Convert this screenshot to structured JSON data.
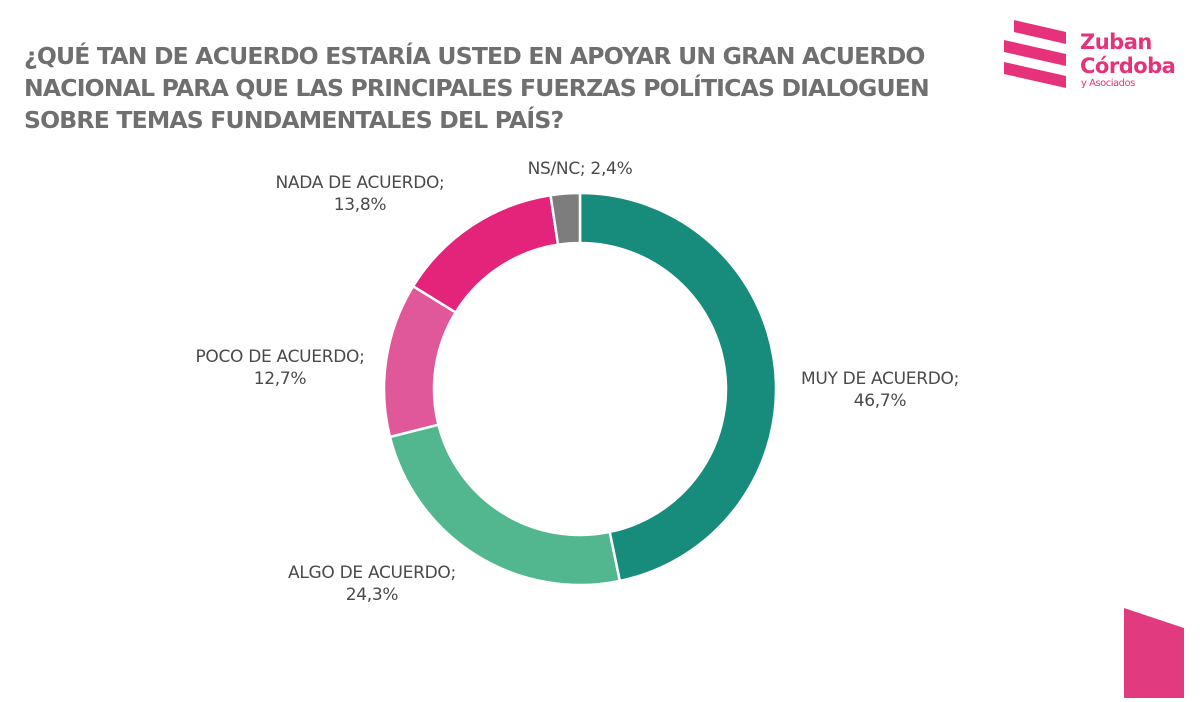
{
  "title": "¿Qué tan de acuerdo estaría usted en apoyar un gran acuerdo nacional para que las principales fuerzas políticas dialoguen sobre temas fundamentales del país?",
  "title_lines": [
    "¿QUÉ TAN DE ACUERDO ESTARÍA USTED EN APOYAR UN GRAN ACUERDO",
    "NACIONAL PARA QUE LAS PRINCIPALES FUERZAS POLÍTICAS DIALOGUEN",
    "SOBRE TEMAS FUNDAMENTALES DEL PAÍS?"
  ],
  "logo": {
    "line1": "Zuban",
    "line2": "Córdoba",
    "line3": "y Asociados",
    "color": "#e5327a"
  },
  "chart_data": {
    "type": "pie",
    "style": "donut",
    "start": "top",
    "direction": "clockwise",
    "unit": "%",
    "categories": [
      "MUY DE ACUERDO",
      "ALGO DE ACUERDO",
      "POCO DE ACUERDO",
      "NADA DE ACUERDO",
      "NS/NC"
    ],
    "values": [
      46.7,
      24.3,
      12.7,
      13.8,
      2.4
    ],
    "value_labels": [
      "46,7%",
      "24,3%",
      "12,7%",
      "13,8%",
      "2,4%"
    ],
    "colors": [
      "#178c7c",
      "#52b78f",
      "#e0589a",
      "#e3247a",
      "#7d7d7d"
    ],
    "legend": "none"
  }
}
